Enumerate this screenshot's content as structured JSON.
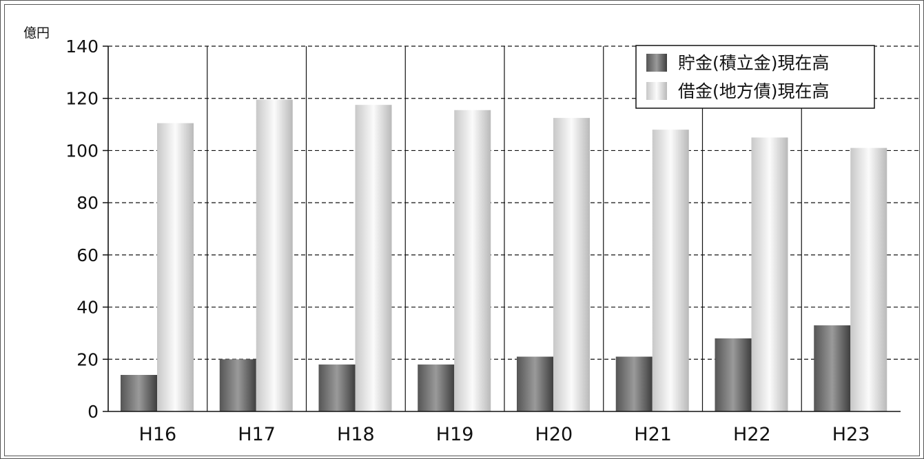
{
  "chart_data": {
    "type": "bar",
    "unit_label": "億円",
    "categories": [
      "H16",
      "H17",
      "H18",
      "H19",
      "H20",
      "H21",
      "H22",
      "H23"
    ],
    "series": [
      {
        "name": "貯金(積立金)現在高",
        "values": [
          14,
          20,
          18,
          18,
          21,
          21,
          28,
          33
        ],
        "color": "#6a6a6a"
      },
      {
        "name": "借金(地方債)現在高",
        "values": [
          110.5,
          119.5,
          117.5,
          115.5,
          112.5,
          108,
          105,
          101
        ],
        "color": "#d8d8d8"
      }
    ],
    "ylim": [
      0,
      140
    ],
    "yticks": [
      0,
      20,
      40,
      60,
      80,
      100,
      120,
      140
    ],
    "grid": true,
    "legend_position": "top-right"
  }
}
